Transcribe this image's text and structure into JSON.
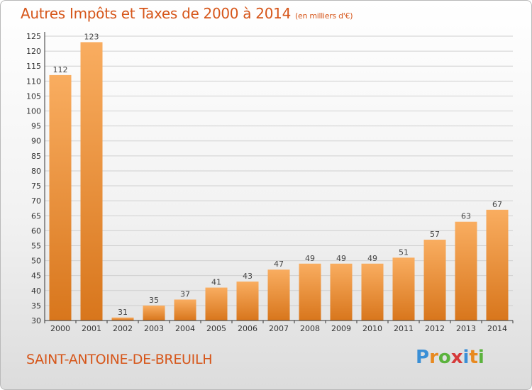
{
  "header": {
    "title": "Autres Impôts et Taxes de 2000 à 2014",
    "unit": "(en milliers d'€)"
  },
  "footer": {
    "commune": "SAINT-ANTOINE-DE-BREUILH",
    "logo_letters": [
      "P",
      "r",
      "o",
      "x",
      "i",
      "t",
      "i"
    ],
    "logo_colors": [
      "#3a8fd6",
      "#e8891f",
      "#5bb33d",
      "#d63a3a",
      "#3a8fd6",
      "#e8891f",
      "#5bb33d"
    ]
  },
  "colors": {
    "title": "#d6561a",
    "bar_light": "#f7aa5c",
    "bar_dark": "#d9781f",
    "grid": "#d0d0d0"
  },
  "chart_data": {
    "type": "bar",
    "title": "Autres Impôts et Taxes de 2000 à 2014",
    "ylabel": "(en milliers d'€)",
    "categories": [
      "2000",
      "2001",
      "2002",
      "2003",
      "2004",
      "2005",
      "2006",
      "2007",
      "2008",
      "2009",
      "2010",
      "2011",
      "2012",
      "2013",
      "2014"
    ],
    "values": [
      112,
      123,
      31,
      35,
      37,
      41,
      43,
      47,
      49,
      49,
      49,
      51,
      57,
      63,
      67
    ],
    "ylim": [
      30,
      125
    ],
    "yticks": [
      30,
      35,
      40,
      45,
      50,
      55,
      60,
      65,
      70,
      75,
      80,
      85,
      90,
      95,
      100,
      105,
      110,
      115,
      120,
      125
    ],
    "grid": true
  }
}
